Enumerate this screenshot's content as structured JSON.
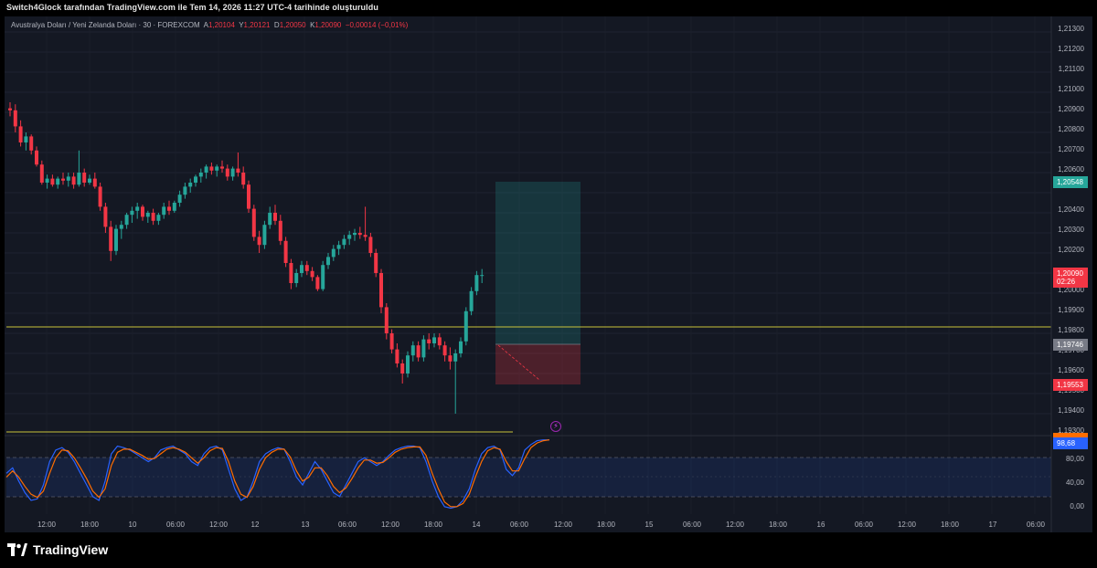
{
  "header": {
    "title": "Switch4Glock tarafından TradingView.com ile Tem 14, 2026 11:27 UTC-4 tarihinde oluşturuldu"
  },
  "legend": {
    "symbol": "Avustralya Doları / Yeni Zelanda Doları · 30 · FOREXCOM",
    "a_key": "A",
    "a_val": "1,20104",
    "y_key": "Y",
    "y_val": "1,20121",
    "d_key": "D",
    "d_val": "1,20050",
    "k_key": "K",
    "k_val": "1,20090",
    "change": "−0,00014 (−0,01%)"
  },
  "price_axis": {
    "labels": [
      "1,21300",
      "1,21200",
      "1,21100",
      "1,21000",
      "1,20900",
      "1,20800",
      "1,20700",
      "1,20600",
      "1,20400",
      "1,20300",
      "1,20200",
      "1,20000",
      "1,19900",
      "1,19800",
      "1,19700",
      "1,19600",
      "1,19500",
      "1,19400",
      "1,19300"
    ]
  },
  "price_tags": {
    "target": "1,20548",
    "current": "1,20090",
    "countdown": "02:26",
    "entry": "1,19746",
    "stop": "1,19553"
  },
  "indicator_axis": {
    "labels": [
      "80,00",
      "40,00",
      "0,00"
    ],
    "value_1": "98,68"
  },
  "time_axis": {
    "labels": [
      "12:00",
      "18:00",
      "10",
      "06:00",
      "12:00",
      "12",
      "13",
      "06:00",
      "12:00",
      "18:00",
      "14",
      "06:00",
      "12:00",
      "18:00",
      "15",
      "06:00",
      "12:00",
      "18:00",
      "16",
      "06:00",
      "12:00",
      "18:00",
      "17",
      "06:00"
    ]
  },
  "branding": {
    "logo_text": "TradingView"
  },
  "colors": {
    "up": "#26a69a",
    "down": "#f23645",
    "bg": "#141823",
    "hline": "#c9c23a",
    "k_line": "#2962ff",
    "d_line": "#ff6d00"
  },
  "price_series": [
    [
      1.2092,
      1.2095,
      1.2088,
      1.2091
    ],
    [
      1.2091,
      1.2094,
      1.208,
      1.2083
    ],
    [
      1.2083,
      1.2086,
      1.2073,
      1.2075
    ],
    [
      1.2075,
      1.208,
      1.2071,
      1.2078
    ],
    [
      1.2078,
      1.2079,
      1.2069,
      1.2071
    ],
    [
      1.2071,
      1.2073,
      1.2063,
      1.2064
    ],
    [
      1.2064,
      1.2066,
      1.2054,
      1.2055
    ],
    [
      1.2055,
      1.2059,
      1.2052,
      1.2057
    ],
    [
      1.2057,
      1.2059,
      1.2053,
      1.2054
    ],
    [
      1.2054,
      1.2058,
      1.2052,
      1.2057
    ],
    [
      1.2057,
      1.206,
      1.2054,
      1.2056
    ],
    [
      1.2056,
      1.206,
      1.2053,
      1.2058
    ],
    [
      1.2058,
      1.206,
      1.2052,
      1.2054
    ],
    [
      1.2054,
      1.2071,
      1.2053,
      1.206
    ],
    [
      1.206,
      1.2062,
      1.2053,
      1.2055
    ],
    [
      1.2055,
      1.2059,
      1.2054,
      1.2057
    ],
    [
      1.2057,
      1.206,
      1.2052,
      1.2053
    ],
    [
      1.2053,
      1.2055,
      1.2041,
      1.2043
    ],
    [
      1.2043,
      1.2045,
      1.203,
      1.2033
    ],
    [
      1.2033,
      1.2036,
      1.2016,
      1.2021
    ],
    [
      1.2021,
      1.2034,
      1.2019,
      1.2032
    ],
    [
      1.2032,
      1.2036,
      1.2027,
      1.2034
    ],
    [
      1.2034,
      1.204,
      1.2032,
      1.2039
    ],
    [
      1.2039,
      1.2043,
      1.2035,
      1.2041
    ],
    [
      1.2041,
      1.2045,
      1.2037,
      1.2043
    ],
    [
      1.2043,
      1.2044,
      1.2036,
      1.2038
    ],
    [
      1.2038,
      1.2041,
      1.2035,
      1.204
    ],
    [
      1.204,
      1.2042,
      1.2034,
      1.2036
    ],
    [
      1.2036,
      1.204,
      1.2034,
      1.2039
    ],
    [
      1.2039,
      1.2045,
      1.2037,
      1.2043
    ],
    [
      1.2043,
      1.2046,
      1.2039,
      1.2041
    ],
    [
      1.2041,
      1.2046,
      1.204,
      1.2045
    ],
    [
      1.2045,
      1.2051,
      1.2043,
      1.2049
    ],
    [
      1.2049,
      1.2055,
      1.2047,
      1.2053
    ],
    [
      1.2053,
      1.2057,
      1.205,
      1.2055
    ],
    [
      1.2055,
      1.2059,
      1.2053,
      1.2058
    ],
    [
      1.2058,
      1.2062,
      1.2055,
      1.206
    ],
    [
      1.206,
      1.2064,
      1.2057,
      1.2063
    ],
    [
      1.2063,
      1.2065,
      1.2059,
      1.2061
    ],
    [
      1.2061,
      1.2064,
      1.2058,
      1.2063
    ],
    [
      1.2063,
      1.2066,
      1.206,
      1.2062
    ],
    [
      1.2062,
      1.2064,
      1.2056,
      1.2058
    ],
    [
      1.2058,
      1.2063,
      1.2056,
      1.2062
    ],
    [
      1.2062,
      1.207,
      1.2058,
      1.206
    ],
    [
      1.206,
      1.2063,
      1.2052,
      1.2054
    ],
    [
      1.2054,
      1.2056,
      1.204,
      1.2042
    ],
    [
      1.2042,
      1.2044,
      1.2026,
      1.2028
    ],
    [
      1.2028,
      1.2031,
      1.202,
      1.2024
    ],
    [
      1.2024,
      1.2036,
      1.2022,
      1.2034
    ],
    [
      1.2034,
      1.2043,
      1.2032,
      1.204
    ],
    [
      1.204,
      1.2044,
      1.2034,
      1.2036
    ],
    [
      1.2036,
      1.2039,
      1.2024,
      1.2026
    ],
    [
      1.2026,
      1.2028,
      1.2013,
      1.2015
    ],
    [
      1.2015,
      1.2017,
      1.2002,
      1.2005
    ],
    [
      1.2005,
      1.2012,
      1.2003,
      1.201
    ],
    [
      1.201,
      1.2016,
      1.2008,
      1.2014
    ],
    [
      1.2014,
      1.2016,
      1.2009,
      1.2011
    ],
    [
      1.2011,
      1.2013,
      1.2006,
      1.2008
    ],
    [
      1.2008,
      1.2009,
      1.2001,
      1.2002
    ],
    [
      1.2002,
      1.2016,
      1.2001,
      1.2014
    ],
    [
      1.2014,
      1.202,
      1.2012,
      1.2018
    ],
    [
      1.2018,
      1.2024,
      1.2016,
      1.2022
    ],
    [
      1.2022,
      1.2026,
      1.2019,
      1.2024
    ],
    [
      1.2024,
      1.2029,
      1.2022,
      1.2027
    ],
    [
      1.2027,
      1.2031,
      1.2024,
      1.2029
    ],
    [
      1.2029,
      1.2032,
      1.2026,
      1.203
    ],
    [
      1.203,
      1.2033,
      1.2027,
      1.2029
    ],
    [
      1.2029,
      1.2043,
      1.2026,
      1.2028
    ],
    [
      1.2028,
      1.203,
      1.2018,
      1.202
    ],
    [
      1.202,
      1.2022,
      1.2008,
      1.201
    ],
    [
      1.201,
      1.2012,
      1.199,
      1.1993
    ],
    [
      1.1993,
      1.1995,
      1.1977,
      1.198
    ],
    [
      1.198,
      1.1982,
      1.197,
      1.1972
    ],
    [
      1.1972,
      1.1975,
      1.1963,
      1.1965
    ],
    [
      1.1965,
      1.1967,
      1.1955,
      1.196
    ],
    [
      1.196,
      1.1971,
      1.1958,
      1.1969
    ],
    [
      1.1969,
      1.1976,
      1.1966,
      1.1974
    ],
    [
      1.1974,
      1.1976,
      1.1966,
      1.1968
    ],
    [
      1.1968,
      1.1979,
      1.1966,
      1.1977
    ],
    [
      1.1977,
      1.198,
      1.1972,
      1.1975
    ],
    [
      1.1975,
      1.198,
      1.1973,
      1.1978
    ],
    [
      1.1978,
      1.198,
      1.1972,
      1.1974
    ],
    [
      1.1974,
      1.1976,
      1.1966,
      1.1969
    ],
    [
      1.1969,
      1.1973,
      1.1962,
      1.1966
    ],
    [
      1.1966,
      1.1972,
      1.194,
      1.197
    ],
    [
      1.197,
      1.1978,
      1.1968,
      1.1976
    ],
    [
      1.1976,
      1.1993,
      1.1974,
      1.1991
    ],
    [
      1.1991,
      1.2003,
      1.1989,
      1.2001
    ],
    [
      1.2001,
      1.2011,
      1.1999,
      1.2009
    ],
    [
      1.2009,
      1.2012,
      1.2005,
      1.2009
    ]
  ],
  "stoch_k": [
    55,
    62,
    45,
    30,
    20,
    22,
    40,
    70,
    85,
    88,
    82,
    70,
    55,
    40,
    25,
    20,
    45,
    80,
    90,
    88,
    85,
    80,
    75,
    70,
    75,
    85,
    88,
    90,
    85,
    80,
    70,
    65,
    80,
    88,
    90,
    85,
    60,
    35,
    20,
    25,
    45,
    70,
    80,
    85,
    88,
    86,
    70,
    50,
    40,
    55,
    70,
    60,
    45,
    30,
    25,
    40,
    55,
    70,
    75,
    70,
    65,
    70,
    78,
    85,
    88,
    90,
    90,
    88,
    70,
    45,
    25,
    12,
    10,
    12,
    20,
    35,
    60,
    80,
    88,
    90,
    85,
    60,
    52,
    62,
    85,
    92,
    97,
    98,
    98
  ],
  "stoch_d": [
    50,
    58,
    50,
    38,
    28,
    24,
    32,
    55,
    75,
    85,
    84,
    75,
    62,
    48,
    32,
    24,
    35,
    65,
    82,
    86,
    86,
    82,
    78,
    73,
    74,
    80,
    86,
    88,
    86,
    82,
    75,
    68,
    75,
    84,
    88,
    87,
    70,
    45,
    28,
    24,
    38,
    60,
    75,
    82,
    86,
    86,
    76,
    58,
    45,
    50,
    62,
    62,
    52,
    38,
    30,
    36,
    48,
    62,
    72,
    72,
    68,
    69,
    75,
    82,
    86,
    88,
    89,
    89,
    78,
    55,
    35,
    18,
    12,
    12,
    16,
    28,
    50,
    70,
    84,
    88,
    86,
    70,
    58,
    58,
    74,
    88,
    94,
    97,
    98
  ]
}
